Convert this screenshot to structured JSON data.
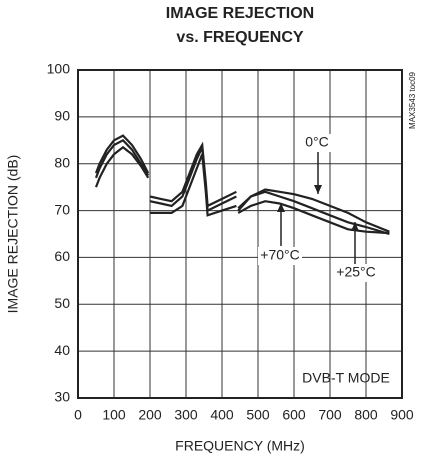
{
  "chart_data": {
    "type": "line",
    "title": "IMAGE REJECTION",
    "subtitle": "vs. FREQUENCY",
    "x_label": "FREQUENCY (MHz)",
    "y_label": "IMAGE REJECTION (dB)",
    "annotations": [
      "DVB-T MODE",
      "MAX3543 toc09"
    ],
    "x": [
      50,
      60,
      80,
      100,
      125,
      150,
      175,
      195,
      197,
      200,
      230,
      260,
      290,
      310,
      330,
      345,
      355,
      360,
      400,
      440,
      442,
      445,
      480,
      520,
      560,
      600,
      650,
      700,
      750,
      800,
      865
    ],
    "series": [
      {
        "name": "0°C",
        "color": "#222222",
        "values": [
          78,
          80,
          83,
          85,
          86,
          84,
          81,
          78,
          null,
          73,
          72.5,
          72,
          74,
          78,
          82,
          84,
          76,
          71,
          72.5,
          74,
          null,
          70.5,
          73,
          74.5,
          74,
          73.5,
          72.5,
          71,
          69.5,
          67.5,
          65.5
        ]
      },
      {
        "name": "+70°C",
        "color": "#222222",
        "values": [
          77,
          79,
          82,
          84,
          85,
          83,
          80,
          77.5,
          null,
          72,
          71.5,
          71,
          73,
          77,
          81,
          83.5,
          75,
          70,
          71.5,
          73,
          null,
          70,
          73,
          74,
          73,
          72,
          70.5,
          69,
          67.5,
          66.5,
          65
        ]
      },
      {
        "name": "+25°C",
        "color": "#222222",
        "values": [
          75,
          77,
          80,
          82,
          83.5,
          82,
          79.5,
          77,
          null,
          69.5,
          69.5,
          69.5,
          71,
          75,
          79,
          82,
          74,
          69,
          70,
          71,
          null,
          69.5,
          71,
          72,
          71.5,
          70.5,
          69,
          67.5,
          66,
          65.5,
          65.2
        ]
      }
    ],
    "xlim": [
      0,
      900
    ],
    "xticks": [
      0,
      100,
      200,
      300,
      400,
      500,
      600,
      700,
      800,
      900
    ],
    "ylim": [
      30,
      100
    ],
    "yticks": [
      30,
      40,
      50,
      60,
      70,
      80,
      90,
      100
    ],
    "grid": true
  }
}
